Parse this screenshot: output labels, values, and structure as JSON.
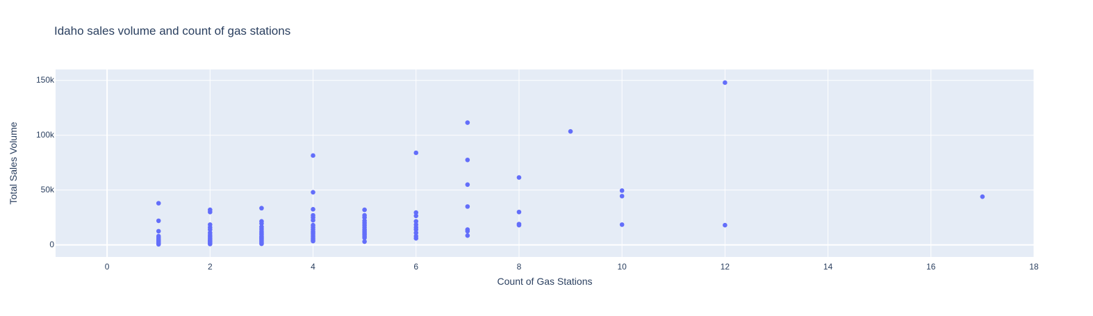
{
  "chart_data": {
    "type": "scatter",
    "title": "Idaho sales volume and count of gas stations",
    "xlabel": "Count of Gas Stations",
    "ylabel": "Total Sales Volume",
    "xlim": [
      -1,
      18
    ],
    "ylim": [
      -11000,
      160000
    ],
    "xticks": [
      0,
      2,
      4,
      6,
      8,
      10,
      12,
      14,
      16,
      18
    ],
    "xtick_labels": [
      "0",
      "2",
      "4",
      "6",
      "8",
      "10",
      "12",
      "14",
      "16",
      "18"
    ],
    "yticks": [
      0,
      50000,
      100000,
      150000
    ],
    "ytick_labels": [
      "0",
      "50k",
      "100k",
      "150k"
    ],
    "grid": true,
    "legend": "none",
    "colors": {
      "marker": "#636efa",
      "plot_bg": "#e5ecf6",
      "grid": "#ffffff",
      "text": "#2a3f5f"
    },
    "series": [
      {
        "points": [
          [
            1,
            38000
          ],
          [
            1,
            22000
          ],
          [
            1,
            12500
          ],
          [
            1,
            8000
          ],
          [
            1,
            6500
          ],
          [
            1,
            5000
          ],
          [
            1,
            4000
          ],
          [
            1,
            3000
          ],
          [
            1,
            2000
          ],
          [
            1,
            1200
          ],
          [
            1,
            500
          ],
          [
            2,
            32000
          ],
          [
            2,
            30000
          ],
          [
            2,
            18500
          ],
          [
            2,
            16000
          ],
          [
            2,
            14000
          ],
          [
            2,
            11000
          ],
          [
            2,
            9000
          ],
          [
            2,
            7500
          ],
          [
            2,
            6000
          ],
          [
            2,
            4500
          ],
          [
            2,
            3500
          ],
          [
            2,
            2500
          ],
          [
            2,
            1500
          ],
          [
            2,
            800
          ],
          [
            3,
            33500
          ],
          [
            3,
            21500
          ],
          [
            3,
            19500
          ],
          [
            3,
            16500
          ],
          [
            3,
            14500
          ],
          [
            3,
            12500
          ],
          [
            3,
            11000
          ],
          [
            3,
            9500
          ],
          [
            3,
            8000
          ],
          [
            3,
            7000
          ],
          [
            3,
            6000
          ],
          [
            3,
            5000
          ],
          [
            3,
            4000
          ],
          [
            3,
            3000
          ],
          [
            3,
            2000
          ],
          [
            3,
            1000
          ],
          [
            4,
            81500
          ],
          [
            4,
            48000
          ],
          [
            4,
            32500
          ],
          [
            4,
            27000
          ],
          [
            4,
            25000
          ],
          [
            4,
            22500
          ],
          [
            4,
            18000
          ],
          [
            4,
            16000
          ],
          [
            4,
            14000
          ],
          [
            4,
            12000
          ],
          [
            4,
            10500
          ],
          [
            4,
            9000
          ],
          [
            4,
            7500
          ],
          [
            4,
            6000
          ],
          [
            4,
            4500
          ],
          [
            4,
            3500
          ],
          [
            5,
            32000
          ],
          [
            5,
            27000
          ],
          [
            5,
            25000
          ],
          [
            5,
            22000
          ],
          [
            5,
            20000
          ],
          [
            5,
            18000
          ],
          [
            5,
            16000
          ],
          [
            5,
            14000
          ],
          [
            5,
            12500
          ],
          [
            5,
            11000
          ],
          [
            5,
            9500
          ],
          [
            5,
            8000
          ],
          [
            5,
            6500
          ],
          [
            5,
            3000
          ],
          [
            6,
            84000
          ],
          [
            6,
            29500
          ],
          [
            6,
            26500
          ],
          [
            6,
            21500
          ],
          [
            6,
            18500
          ],
          [
            6,
            16000
          ],
          [
            6,
            14000
          ],
          [
            6,
            11000
          ],
          [
            6,
            8000
          ],
          [
            6,
            6000
          ],
          [
            7,
            111500
          ],
          [
            7,
            77500
          ],
          [
            7,
            55000
          ],
          [
            7,
            35000
          ],
          [
            7,
            14000
          ],
          [
            7,
            12500
          ],
          [
            7,
            8500
          ],
          [
            8,
            61500
          ],
          [
            8,
            30000
          ],
          [
            8,
            19000
          ],
          [
            8,
            18000
          ],
          [
            9,
            103500
          ],
          [
            10,
            49500
          ],
          [
            10,
            44500
          ],
          [
            10,
            18500
          ],
          [
            12,
            148000
          ],
          [
            12,
            18000
          ],
          [
            17,
            44000
          ]
        ]
      }
    ]
  }
}
